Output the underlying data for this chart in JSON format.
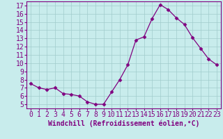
{
  "x": [
    0,
    1,
    2,
    3,
    4,
    5,
    6,
    7,
    8,
    9,
    10,
    11,
    12,
    13,
    14,
    15,
    16,
    17,
    18,
    19,
    20,
    21,
    22,
    23
  ],
  "y": [
    7.5,
    7.0,
    6.8,
    7.0,
    6.3,
    6.2,
    6.0,
    5.3,
    5.0,
    5.0,
    6.5,
    8.0,
    9.8,
    12.8,
    13.2,
    15.4,
    17.1,
    16.5,
    15.5,
    14.7,
    13.1,
    11.8,
    10.5,
    9.8
  ],
  "line_color": "#800080",
  "marker": "D",
  "marker_size": 2.5,
  "bg_color": "#c8ecec",
  "grid_color": "#a0cccc",
  "xlabel": "Windchill (Refroidissement éolien,°C)",
  "ylabel": "",
  "title": "",
  "xlim": [
    -0.5,
    23.5
  ],
  "ylim": [
    4.5,
    17.5
  ],
  "yticks": [
    5,
    6,
    7,
    8,
    9,
    10,
    11,
    12,
    13,
    14,
    15,
    16,
    17
  ],
  "xticks": [
    0,
    1,
    2,
    3,
    4,
    5,
    6,
    7,
    8,
    9,
    10,
    11,
    12,
    13,
    14,
    15,
    16,
    17,
    18,
    19,
    20,
    21,
    22,
    23
  ],
  "tick_fontsize": 7,
  "xlabel_fontsize": 7
}
